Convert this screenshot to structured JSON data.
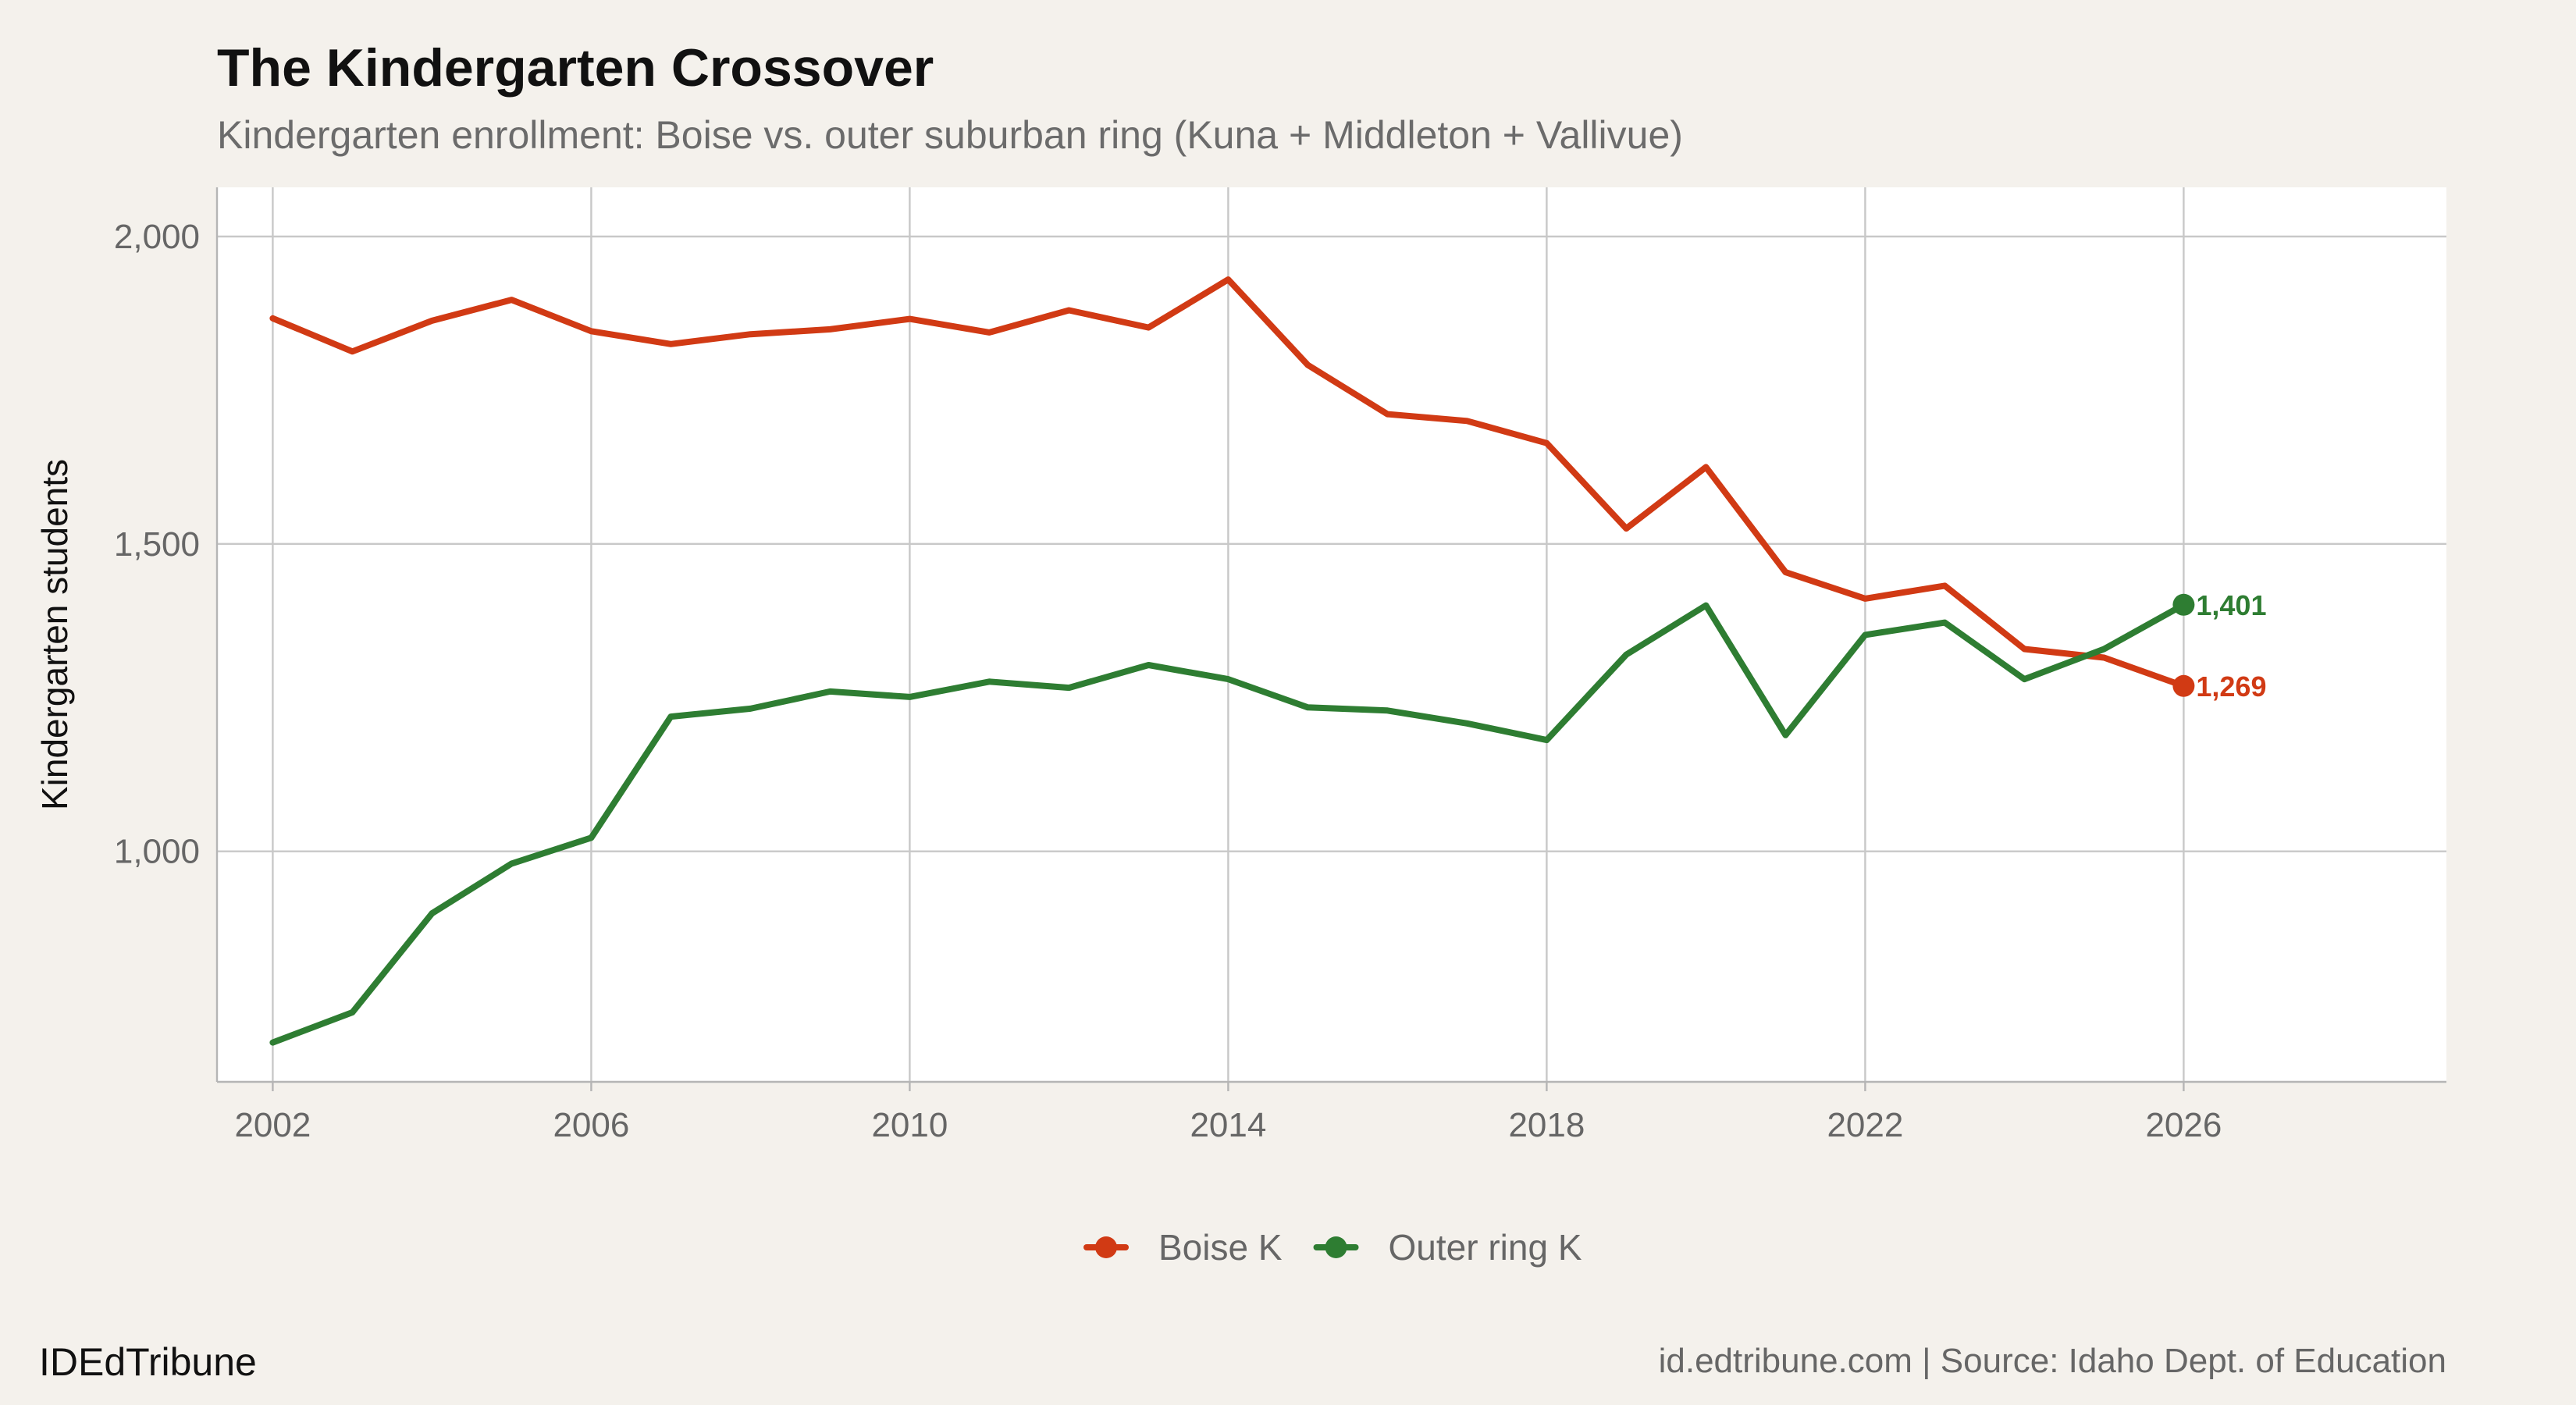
{
  "chart_data": {
    "type": "line",
    "title": "The Kindergarten Crossover",
    "subtitle": "Kindergarten enrollment: Boise vs. outer suburban ring (Kuna + Middleton + Vallivue)",
    "xlabel": "",
    "ylabel": "Kindergarten students",
    "x": [
      2002,
      2003,
      2004,
      2005,
      2006,
      2007,
      2008,
      2009,
      2010,
      2011,
      2012,
      2013,
      2014,
      2015,
      2016,
      2017,
      2018,
      2019,
      2020,
      2021,
      2022,
      2023,
      2024,
      2025,
      2026
    ],
    "xlim": [
      2001.3,
      2029.3
    ],
    "ylim": [
      625,
      2080
    ],
    "xticks": [
      2002,
      2006,
      2010,
      2014,
      2018,
      2022,
      2026
    ],
    "xtick_labels": [
      "2002",
      "2006",
      "2010",
      "2014",
      "2018",
      "2022",
      "2026"
    ],
    "yticks": [
      1000,
      1500,
      2000
    ],
    "ytick_labels": [
      "1,000",
      "1,500",
      "2,000"
    ],
    "grid": true,
    "legend_position": "bottom",
    "series": [
      {
        "name": "Boise K",
        "color": "#d13a14",
        "values": [
          1867,
          1813,
          1863,
          1897,
          1846,
          1825,
          1841,
          1849,
          1866,
          1844,
          1880,
          1852,
          1930,
          1791,
          1711,
          1700,
          1664,
          1525,
          1625,
          1454,
          1411,
          1432,
          1329,
          1315,
          1269
        ],
        "end_label": "1,269"
      },
      {
        "name": "Outer ring K",
        "color": "#2e7d32",
        "values": [
          689,
          738,
          899,
          980,
          1022,
          1219,
          1232,
          1260,
          1251,
          1276,
          1266,
          1303,
          1280,
          1234,
          1229,
          1208,
          1181,
          1320,
          1400,
          1189,
          1352,
          1372,
          1280,
          1329,
          1401
        ],
        "end_label": "1,401"
      }
    ]
  },
  "footer": {
    "brand": "IDEdTribune",
    "source": "id.edtribune.com | Source: Idaho Dept. of Education"
  }
}
